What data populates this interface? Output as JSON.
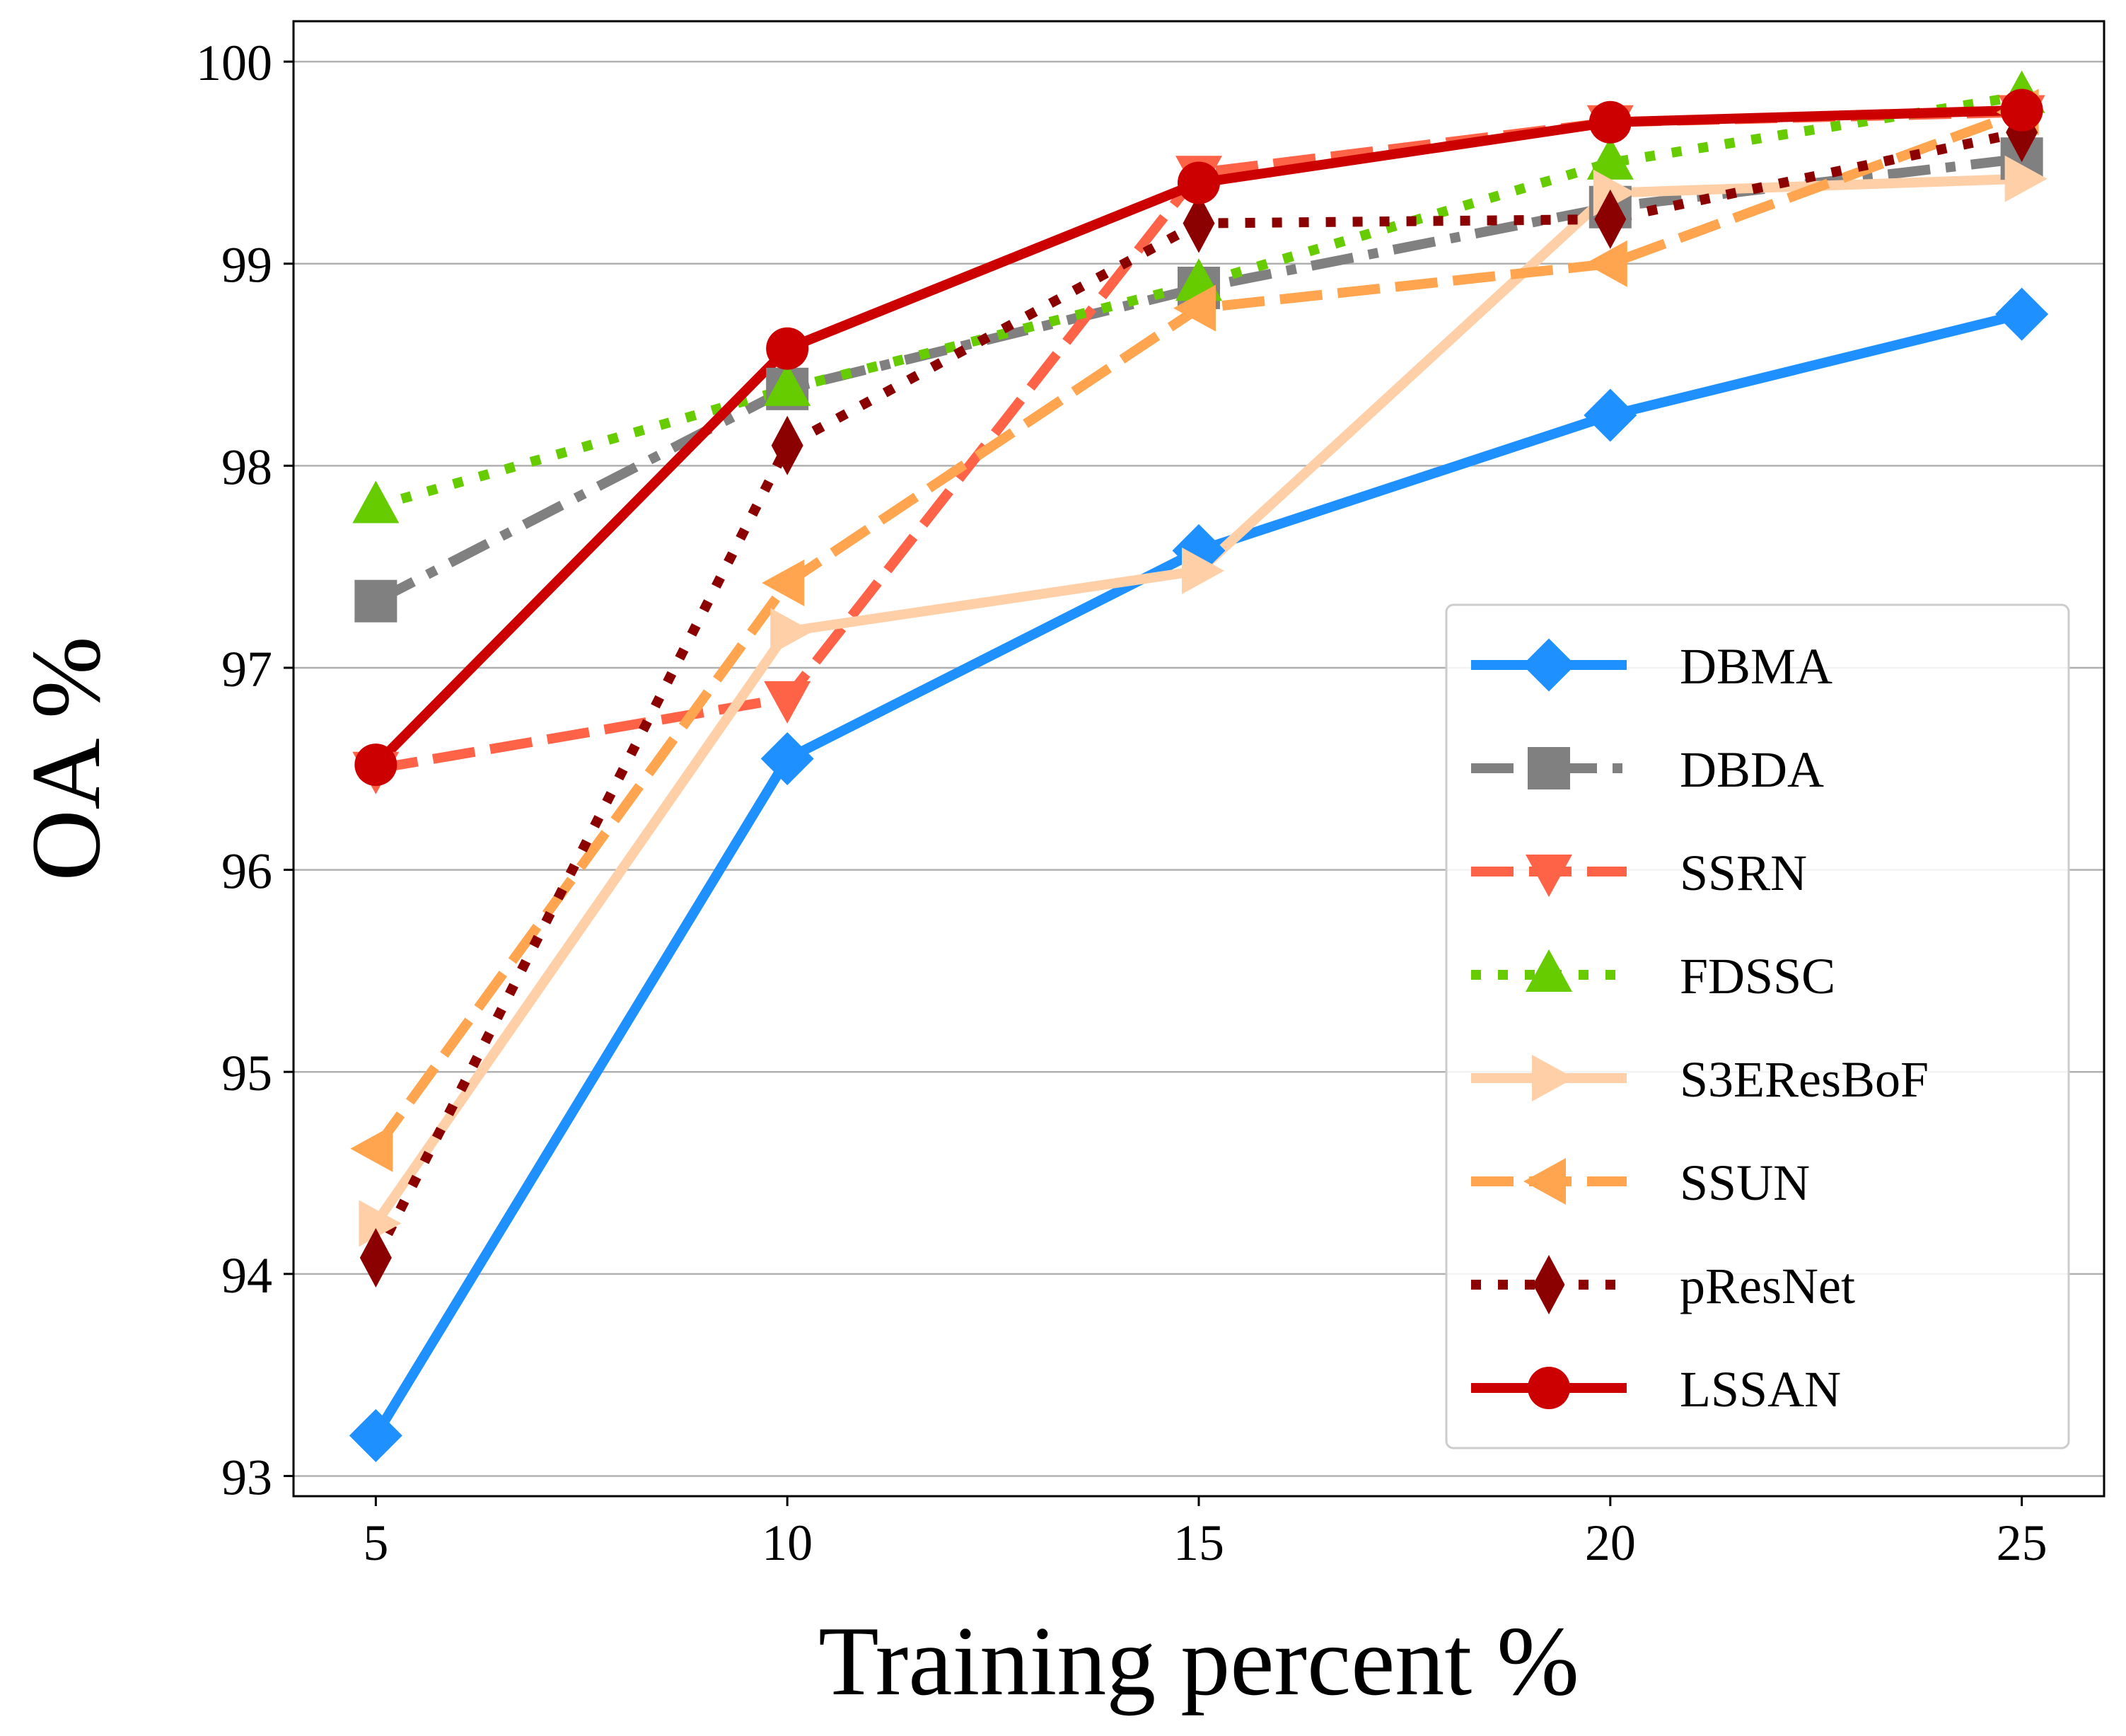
{
  "chart_data": {
    "type": "line",
    "title": "",
    "xlabel": "Training percent %",
    "ylabel": "OA %",
    "x": [
      5,
      10,
      15,
      20,
      25
    ],
    "xlim": [
      4,
      26
    ],
    "ylim": [
      92.9,
      100.2
    ],
    "xticks": [
      "5",
      "10",
      "15",
      "20",
      "25"
    ],
    "yticks": [
      "93",
      "94",
      "95",
      "96",
      "97",
      "98",
      "99",
      "100"
    ],
    "grid": "horizontal",
    "legend_position": "lower-right",
    "series": [
      {
        "name": "DBMA",
        "values": [
          93.2,
          96.55,
          97.58,
          98.25,
          98.75
        ],
        "color": "#1E90FF",
        "marker": "diamond",
        "dash": "solid"
      },
      {
        "name": "DBDA",
        "values": [
          97.33,
          98.38,
          98.88,
          99.28,
          99.52
        ],
        "color": "#808080",
        "marker": "square",
        "dash": "dashdot"
      },
      {
        "name": "SSRN",
        "values": [
          96.5,
          96.85,
          99.45,
          99.7,
          99.75
        ],
        "color": "#FF6347",
        "marker": "triangle-down",
        "dash": "dashed"
      },
      {
        "name": "FDSSC",
        "values": [
          97.8,
          98.38,
          98.9,
          99.5,
          99.83
        ],
        "color": "#66CC00",
        "marker": "triangle-up",
        "dash": "dotted"
      },
      {
        "name": "S3EResBoF",
        "values": [
          94.25,
          97.18,
          97.48,
          99.35,
          99.42
        ],
        "color": "#FFD0A8",
        "marker": "triangle-right",
        "dash": "solid"
      },
      {
        "name": "SSUN",
        "values": [
          94.62,
          97.42,
          98.78,
          99.0,
          99.75
        ],
        "color": "#FFA54F",
        "marker": "triangle-left",
        "dash": "dashed"
      },
      {
        "name": "pResNet",
        "values": [
          94.08,
          98.1,
          99.2,
          99.22,
          99.65
        ],
        "color": "#8B0000",
        "marker": "thin-diamond",
        "dash": "dotted"
      },
      {
        "name": "LSSAN",
        "values": [
          96.52,
          98.58,
          99.4,
          99.7,
          99.76
        ],
        "color": "#CC0000",
        "marker": "circle",
        "dash": "solid"
      }
    ]
  }
}
